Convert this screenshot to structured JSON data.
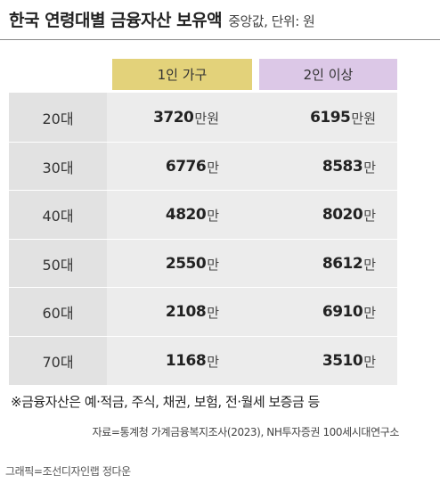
{
  "title": "한국 연령대별 금융자산 보유액",
  "subtitle": "중앙값, 단위: 원",
  "chart_data": {
    "type": "table",
    "title": "한국 연령대별 금융자산 보유액",
    "columns": [
      "1인 가구",
      "2인 이상"
    ],
    "rows": [
      {
        "label": "20대",
        "values": [
          "3720",
          "6195"
        ],
        "units": [
          "만원",
          "만원"
        ]
      },
      {
        "label": "30대",
        "values": [
          "6776",
          "8583"
        ],
        "units": [
          "만",
          "만"
        ]
      },
      {
        "label": "40대",
        "values": [
          "4820",
          "8020"
        ],
        "units": [
          "만",
          "만"
        ]
      },
      {
        "label": "50대",
        "values": [
          "2550",
          "8612"
        ],
        "units": [
          "만",
          "만"
        ]
      },
      {
        "label": "60대",
        "values": [
          "2108",
          "6910"
        ],
        "units": [
          "만",
          "만"
        ]
      },
      {
        "label": "70대",
        "values": [
          "1168",
          "3510"
        ],
        "units": [
          "만",
          "만"
        ]
      }
    ],
    "column_colors": [
      "#e3d27a",
      "#dcc8e7"
    ]
  },
  "footnote": "※금융자산은 예·적금, 주식, 채권, 보험, 전·월세 보증금 등",
  "source": "자료=통계청 가계금융복지조사(2023), NH투자증권 100세시대연구소",
  "credit": "그래픽=조선디자인랩 정다운"
}
